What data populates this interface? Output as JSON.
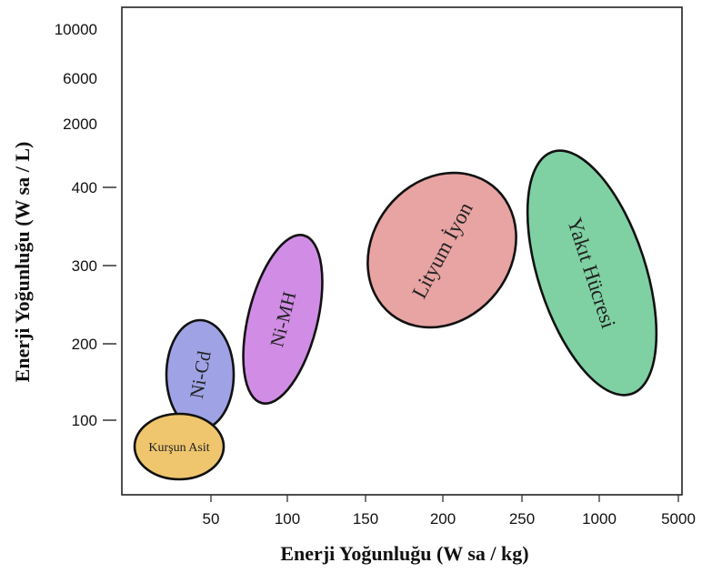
{
  "chart_data": {
    "type": "scatter",
    "title": "",
    "xlabel": "Enerji Yoğunluğu (W sa / kg)",
    "ylabel": "Enerji Yoğunluğu (W sa / L)",
    "x_ticks": [
      "50",
      "100",
      "150",
      "200",
      "250",
      "1000",
      "5000"
    ],
    "y_ticks": [
      "100",
      "200",
      "300",
      "400",
      "2000",
      "6000",
      "10000"
    ],
    "grid": false,
    "legend": "none",
    "series": [
      {
        "name": "Kurşun Asit",
        "color": "#EFC66E",
        "x_range": [
          25,
          50
        ],
        "y_range": [
          80,
          100
        ]
      },
      {
        "name": "Ni-Cd",
        "color": "#9FA3E6",
        "x_range": [
          40,
          60
        ],
        "y_range": [
          110,
          200
        ]
      },
      {
        "name": "Ni-MH",
        "color": "#D18DE6",
        "x_range": [
          80,
          110
        ],
        "y_range": [
          160,
          320
        ]
      },
      {
        "name": "Lityum İyon",
        "color": "#E8A3A3",
        "x_range": [
          160,
          220
        ],
        "y_range": [
          240,
          400
        ]
      },
      {
        "name": "Yakıt Hücresi",
        "color": "#7FD1A3",
        "x_range": [
          250,
          5000
        ],
        "y_range": [
          150,
          400
        ]
      }
    ]
  }
}
